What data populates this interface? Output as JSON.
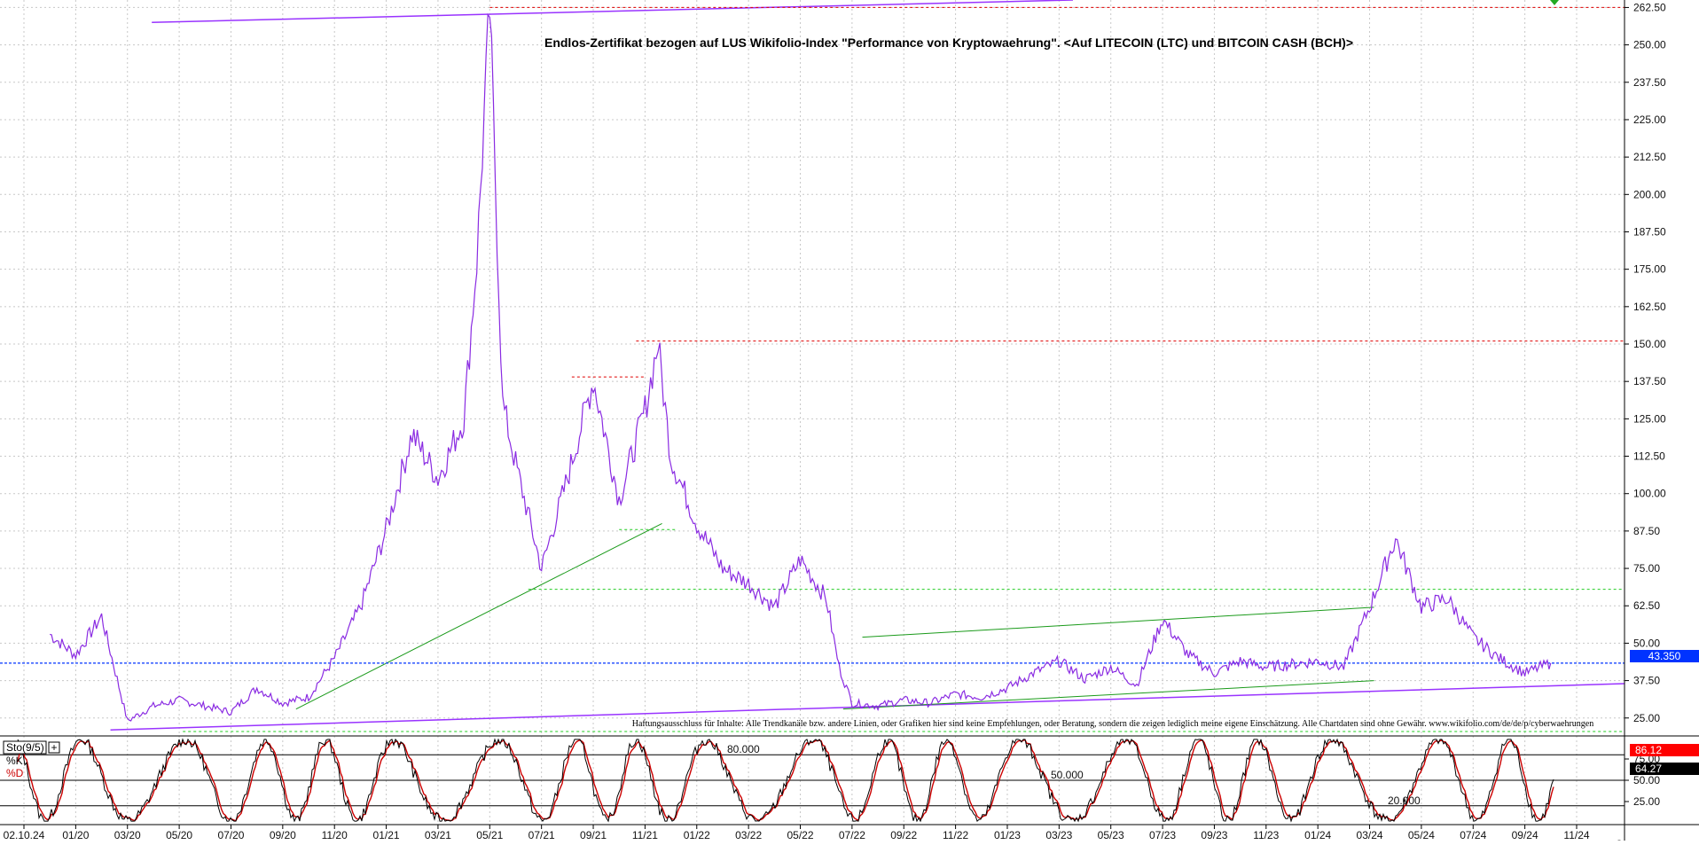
{
  "chart_data": {
    "type": "line",
    "title": "Endlos-Zertifikat bezogen auf LUS Wikifolio-Index \"Performance von Kryptowaehrung\". <Auf LITECOIN (LTC) und BITCOIN CASH (BCH)>",
    "disclaimer": "Haftungsausschluss für Inhalte: Alle Trendkanäle bzw. andere Linien, oder Grafiken hier sind keine Empfehlungen, oder Beratung, sondern die zeigen lediglich meine eigene Einschätzung. Alle Chartdaten sind ohne Gewähr.  www.wikifolio.com/de/de/p/cyberwaehrungen",
    "x_ticks": [
      "02.10.24",
      "01/20",
      "03/20",
      "05/20",
      "07/20",
      "09/20",
      "11/20",
      "01/21",
      "03/21",
      "05/21",
      "07/21",
      "09/21",
      "11/21",
      "01/22",
      "03/22",
      "05/22",
      "07/22",
      "09/22",
      "11/22",
      "01/23",
      "03/23",
      "05/23",
      "07/23",
      "09/23",
      "11/23",
      "01/24",
      "03/24",
      "05/24",
      "07/24",
      "09/24",
      "11/24"
    ],
    "y_ticks": [
      "262.50",
      "250.00",
      "237.50",
      "225.00",
      "212.50",
      "200.00",
      "187.50",
      "175.00",
      "162.50",
      "150.00",
      "137.50",
      "125.00",
      "112.50",
      "100.00",
      "87.50",
      "75.00",
      "62.50",
      "50.00",
      "37.50",
      "25.00"
    ],
    "ylim": [
      19,
      265
    ],
    "last_price": "43.350",
    "series": [
      {
        "color": "#8a2be2",
        "points": [
          [
            "12/19",
            53
          ],
          [
            "01/20",
            46
          ],
          [
            "02/20",
            59
          ],
          [
            "03/20",
            24
          ],
          [
            "04/20",
            29
          ],
          [
            "05/20",
            31
          ],
          [
            "06/20",
            29
          ],
          [
            "07/20",
            27
          ],
          [
            "08/20",
            35
          ],
          [
            "09/20",
            30
          ],
          [
            "10/20",
            32
          ],
          [
            "11/20",
            45
          ],
          [
            "12/20",
            62
          ],
          [
            "01/21",
            88
          ],
          [
            "02/21",
            120
          ],
          [
            "03/21",
            105
          ],
          [
            "04/21",
            125
          ],
          [
            "04/21b",
            178
          ],
          [
            "05/21",
            262
          ],
          [
            "05/21b",
            130
          ],
          [
            "06/21",
            110
          ],
          [
            "07/21",
            75
          ],
          [
            "08/21",
            105
          ],
          [
            "09/21",
            138
          ],
          [
            "10/21",
            98
          ],
          [
            "11/21",
            128
          ],
          [
            "11/21b",
            150
          ],
          [
            "12/21",
            112
          ],
          [
            "01/22",
            90
          ],
          [
            "02/22",
            75
          ],
          [
            "03/22",
            70
          ],
          [
            "04/22",
            62
          ],
          [
            "05/22",
            78
          ],
          [
            "06/22",
            65
          ],
          [
            "06/22b",
            42
          ],
          [
            "07/22",
            30
          ],
          [
            "08/22",
            29
          ],
          [
            "09/22",
            31
          ],
          [
            "10/22",
            30
          ],
          [
            "11/22",
            33
          ],
          [
            "12/22",
            32
          ],
          [
            "01/23",
            35
          ],
          [
            "02/23",
            40
          ],
          [
            "03/23",
            44
          ],
          [
            "04/23",
            38
          ],
          [
            "05/23",
            42
          ],
          [
            "06/23",
            36
          ],
          [
            "07/23",
            58
          ],
          [
            "08/23",
            46
          ],
          [
            "09/23",
            40
          ],
          [
            "10/23",
            44
          ],
          [
            "11/23",
            42
          ],
          [
            "12/23",
            43
          ],
          [
            "01/24",
            44
          ],
          [
            "02/24",
            42
          ],
          [
            "03/24",
            62
          ],
          [
            "04/24",
            85
          ],
          [
            "05/24",
            62
          ],
          [
            "06/24",
            65
          ],
          [
            "07/24",
            52
          ],
          [
            "08/24",
            45
          ],
          [
            "09/24",
            40
          ],
          [
            "10/24",
            43.35
          ]
        ]
      }
    ],
    "stochastic": {
      "label": "Sto(9/5)",
      "k_label": "%K",
      "d_label": "%D",
      "k_value": "86.12",
      "d_value": "64.27",
      "levels": [
        "80.000",
        "50.000",
        "20.000"
      ],
      "y_ticks": [
        "75.00",
        "50.00",
        "25.00"
      ],
      "k_color": "#000000",
      "d_color": "#cc0000"
    },
    "annotation_colors": {
      "price": "#8a2be2",
      "trend_green": "#1a9a1a",
      "channel_purple": "#9933ff",
      "resistance_red": "#e00000",
      "support_green": "#22cc22",
      "last_price_blue": "#0033ff"
    }
  }
}
